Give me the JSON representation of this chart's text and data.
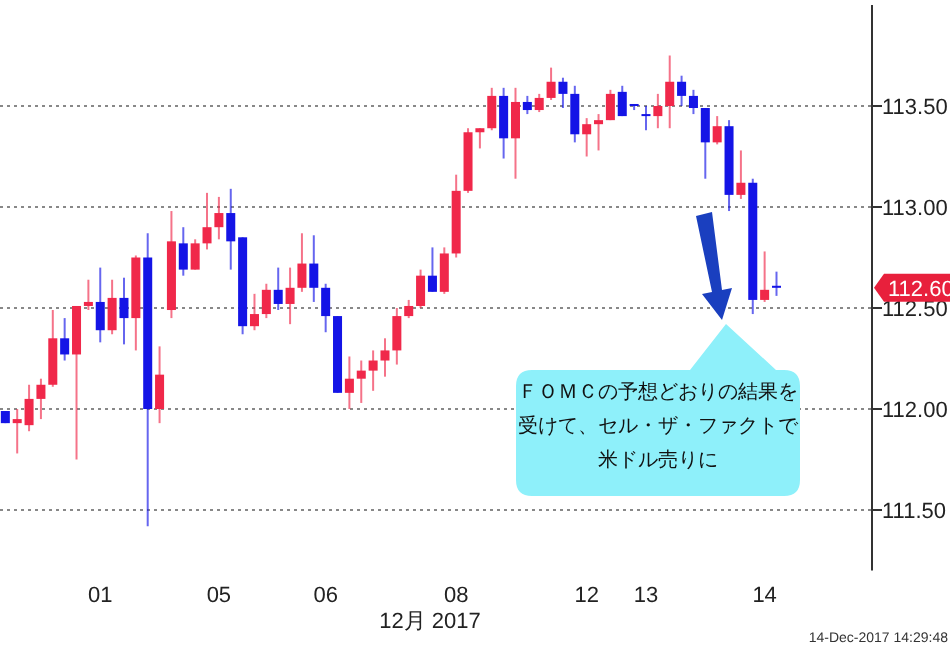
{
  "chart_data": {
    "type": "candlestick",
    "xlabel": "12月 2017",
    "categories": [
      null,
      null,
      null,
      null,
      null,
      null,
      null,
      null,
      "01",
      null,
      null,
      null,
      null,
      null,
      null,
      null,
      null,
      null,
      "05",
      null,
      null,
      null,
      null,
      null,
      null,
      null,
      null,
      "06",
      null,
      null,
      null,
      null,
      null,
      null,
      null,
      null,
      null,
      null,
      "08",
      null,
      null,
      null,
      null,
      null,
      null,
      null,
      null,
      null,
      null,
      "12",
      null,
      null,
      null,
      null,
      "13",
      null,
      null,
      null,
      null,
      null,
      null,
      null,
      null,
      null,
      "14",
      null
    ],
    "ohlc": [
      [
        111.99,
        111.99,
        111.93,
        111.93
      ],
      [
        111.93,
        112.0,
        111.78,
        111.95
      ],
      [
        111.92,
        112.12,
        111.89,
        112.05
      ],
      [
        112.05,
        112.15,
        111.95,
        112.12
      ],
      [
        112.12,
        112.49,
        112.11,
        112.35
      ],
      [
        112.35,
        112.45,
        112.24,
        112.27
      ],
      [
        112.27,
        112.51,
        111.75,
        112.51
      ],
      [
        112.51,
        112.64,
        112.49,
        112.53
      ],
      [
        112.53,
        112.7,
        112.33,
        112.39
      ],
      [
        112.39,
        112.64,
        112.37,
        112.55
      ],
      [
        112.55,
        112.65,
        112.32,
        112.45
      ],
      [
        112.45,
        112.76,
        112.29,
        112.75
      ],
      [
        112.75,
        112.87,
        111.42,
        112.0
      ],
      [
        112.0,
        112.31,
        111.93,
        112.17
      ],
      [
        112.49,
        112.98,
        112.45,
        112.83
      ],
      [
        112.82,
        112.9,
        112.66,
        112.69
      ],
      [
        112.69,
        112.84,
        112.69,
        112.82
      ],
      [
        112.82,
        113.07,
        112.79,
        112.9
      ],
      [
        112.9,
        113.05,
        112.84,
        112.97
      ],
      [
        112.97,
        113.09,
        112.69,
        112.83
      ],
      [
        112.85,
        112.85,
        112.37,
        112.41
      ],
      [
        112.41,
        112.57,
        112.39,
        112.47
      ],
      [
        112.47,
        112.62,
        112.45,
        112.59
      ],
      [
        112.59,
        112.7,
        112.49,
        112.52
      ],
      [
        112.52,
        112.7,
        112.42,
        112.6
      ],
      [
        112.6,
        112.87,
        112.58,
        112.72
      ],
      [
        112.72,
        112.86,
        112.53,
        112.6
      ],
      [
        112.6,
        112.62,
        112.38,
        112.46
      ],
      [
        112.46,
        112.46,
        112.08,
        112.08
      ],
      [
        112.08,
        112.26,
        112.0,
        112.15
      ],
      [
        112.15,
        112.24,
        112.03,
        112.19
      ],
      [
        112.19,
        112.29,
        112.09,
        112.24
      ],
      [
        112.24,
        112.35,
        112.16,
        112.29
      ],
      [
        112.29,
        112.5,
        112.22,
        112.46
      ],
      [
        112.46,
        112.54,
        112.45,
        112.51
      ],
      [
        112.51,
        112.69,
        112.5,
        112.66
      ],
      [
        112.66,
        112.8,
        112.58,
        112.58
      ],
      [
        112.58,
        112.8,
        112.57,
        112.77
      ],
      [
        112.77,
        113.16,
        112.75,
        113.08
      ],
      [
        113.08,
        113.39,
        113.07,
        113.37
      ],
      [
        113.37,
        113.39,
        113.29,
        113.39
      ],
      [
        113.39,
        113.59,
        113.38,
        113.55
      ],
      [
        113.55,
        113.59,
        113.24,
        113.34
      ],
      [
        113.34,
        113.59,
        113.14,
        113.52
      ],
      [
        113.52,
        113.55,
        113.46,
        113.48
      ],
      [
        113.48,
        113.56,
        113.47,
        113.54
      ],
      [
        113.54,
        113.69,
        113.53,
        113.62
      ],
      [
        113.62,
        113.64,
        113.49,
        113.56
      ],
      [
        113.56,
        113.6,
        113.32,
        113.36
      ],
      [
        113.36,
        113.44,
        113.25,
        113.41
      ],
      [
        113.41,
        113.46,
        113.28,
        113.43
      ],
      [
        113.43,
        113.58,
        113.43,
        113.56
      ],
      [
        113.57,
        113.6,
        113.45,
        113.45
      ],
      [
        113.51,
        113.51,
        113.48,
        113.5
      ],
      [
        113.46,
        113.5,
        113.38,
        113.45
      ],
      [
        113.45,
        113.56,
        113.39,
        113.5
      ],
      [
        113.5,
        113.75,
        113.39,
        113.62
      ],
      [
        113.62,
        113.65,
        113.5,
        113.55
      ],
      [
        113.55,
        113.58,
        113.46,
        113.49
      ],
      [
        113.49,
        113.49,
        113.14,
        113.32
      ],
      [
        113.32,
        113.45,
        113.31,
        113.4
      ],
      [
        113.4,
        113.43,
        112.98,
        113.06
      ],
      [
        113.06,
        113.28,
        113.04,
        113.12
      ],
      [
        113.12,
        113.14,
        112.47,
        112.54
      ],
      [
        112.54,
        112.78,
        112.53,
        112.59
      ],
      [
        112.61,
        112.68,
        112.56,
        112.6
      ]
    ],
    "colors": [
      "#1414e6",
      "#f0284a",
      "#f0284a",
      "#f0284a",
      "#f0284a",
      "#1414e6",
      "#f0284a",
      "#f0284a",
      "#1414e6",
      "#f0284a",
      "#1414e6",
      "#f0284a",
      "#1414e6",
      "#f0284a",
      "#f0284a",
      "#1414e6",
      "#f0284a",
      "#f0284a",
      "#f0284a",
      "#1414e6",
      "#1414e6",
      "#f0284a",
      "#f0284a",
      "#1414e6",
      "#f0284a",
      "#f0284a",
      "#1414e6",
      "#1414e6",
      "#1414e6",
      "#f0284a",
      "#f0284a",
      "#f0284a",
      "#f0284a",
      "#f0284a",
      "#f0284a",
      "#f0284a",
      "#1414e6",
      "#f0284a",
      "#f0284a",
      "#f0284a",
      "#f0284a",
      "#f0284a",
      "#1414e6",
      "#f0284a",
      "#1414e6",
      "#f0284a",
      "#f0284a",
      "#1414e6",
      "#1414e6",
      "#f0284a",
      "#f0284a",
      "#f0284a",
      "#1414e6",
      "#1414e6",
      "#1414e6",
      "#f0284a",
      "#f0284a",
      "#1414e6",
      "#1414e6",
      "#1414e6",
      "#f0284a",
      "#1414e6",
      "#f0284a",
      "#1414e6",
      "#f0284a",
      "#1414e6"
    ],
    "ylim": [
      111.2,
      114.0
    ],
    "yticks": [
      {
        "value": 111.5,
        "label": "111.50"
      },
      {
        "value": 112.0,
        "label": "112.00"
      },
      {
        "value": 112.5,
        "label": "112.50"
      },
      {
        "value": 113.0,
        "label": "113.00"
      },
      {
        "value": 113.5,
        "label": "113.50"
      }
    ],
    "grid": "y",
    "annotations": [
      "112.60",
      "ＦＯＭＣの予想どおりの結果を受けて、セル・ザ・ファクトで米ドル売りに",
      "14-Dec-2017 14:29:48"
    ]
  }
}
